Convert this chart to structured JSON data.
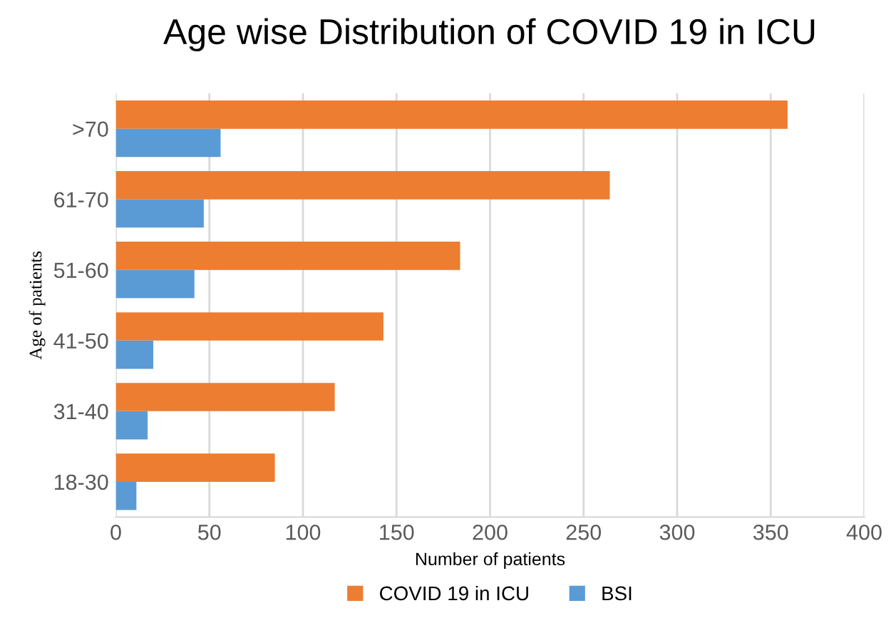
{
  "chart_data": {
    "type": "bar",
    "orientation": "horizontal",
    "title": "Age wise Distribution of COVID 19 in ICU",
    "xlabel": "Number of patients",
    "ylabel": "Age of patients",
    "categories": [
      ">70",
      "61-70",
      "51-60",
      "41-50",
      "31-40",
      "18-30"
    ],
    "series": [
      {
        "name": "COVID 19 in ICU",
        "color": "#ed7d31",
        "values": [
          359,
          264,
          184,
          143,
          117,
          85
        ]
      },
      {
        "name": "BSI",
        "color": "#5b9bd5",
        "values": [
          56,
          47,
          42,
          20,
          17,
          11
        ]
      }
    ],
    "xlim": [
      0,
      400
    ],
    "xticks": [
      0,
      50,
      100,
      150,
      200,
      250,
      300,
      350,
      400
    ],
    "grid": "x",
    "legend": "bottom"
  }
}
